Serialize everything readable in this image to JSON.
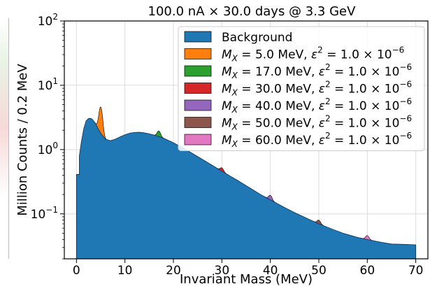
{
  "chart_data": {
    "type": "area",
    "title": "100.0 nA × 30.0 days @ 3.3 GeV",
    "xlabel": "Invariant Mass (MeV)",
    "ylabel": "Million Counts / 0.2 MeV",
    "x_ticks": [
      0,
      10,
      20,
      30,
      40,
      50,
      60,
      70
    ],
    "y_ticks": [
      {
        "value": 0.1,
        "base": "10",
        "exp": "−1"
      },
      {
        "value": 1,
        "base": "10",
        "exp": "0"
      },
      {
        "value": 10,
        "base": "10",
        "exp": "1"
      },
      {
        "value": 100,
        "base": "10",
        "exp": "2"
      }
    ],
    "xlim": [
      -2.5,
      72.5
    ],
    "ylim": [
      0.02,
      100
    ],
    "yscale": "log",
    "grid": true,
    "legend_position": "top-right",
    "background": {
      "name": "Background",
      "color": "#1f77b4",
      "x": [
        0,
        0.6,
        0.6,
        1,
        1.5,
        2,
        2.5,
        3,
        3.3,
        4,
        4.5,
        5,
        6,
        7,
        8,
        9,
        10,
        11,
        12,
        13,
        14,
        15,
        16,
        18,
        20,
        22,
        25,
        28,
        30,
        33,
        35,
        38,
        40,
        43,
        45,
        48,
        50,
        53,
        55,
        58,
        60,
        63,
        65,
        68,
        70
      ],
      "y": [
        0.41,
        0.41,
        0.8,
        1.3,
        2.1,
        2.8,
        3.05,
        3.05,
        2.95,
        2.5,
        2.1,
        1.8,
        1.45,
        1.38,
        1.45,
        1.58,
        1.7,
        1.8,
        1.85,
        1.86,
        1.82,
        1.76,
        1.68,
        1.5,
        1.28,
        1.06,
        0.78,
        0.57,
        0.46,
        0.34,
        0.275,
        0.2,
        0.165,
        0.125,
        0.105,
        0.082,
        0.07,
        0.057,
        0.05,
        0.043,
        0.04,
        0.036,
        0.034,
        0.0335,
        0.033
      ]
    },
    "signals": [
      {
        "label_mass": "5.0",
        "color": "#ff7f0e",
        "mass": 5.0,
        "peak": 4.6
      },
      {
        "label_mass": "17.0",
        "color": "#2ca02c",
        "mass": 17.0,
        "peak": 1.95
      },
      {
        "label_mass": "30.0",
        "color": "#d62728",
        "mass": 30.0,
        "peak": 0.52
      },
      {
        "label_mass": "40.0",
        "color": "#9467bd",
        "mass": 40.0,
        "peak": 0.195
      },
      {
        "label_mass": "50.0",
        "color": "#8c564b",
        "mass": 50.0,
        "peak": 0.08
      },
      {
        "label_mass": "60.0",
        "color": "#e377c2",
        "mass": 60.0,
        "peak": 0.046
      }
    ],
    "signal_label_parts": {
      "mass_symbol": "M",
      "mass_subscript": "X",
      "eq_mass": " = ",
      "unit": " MeV, ",
      "eps_symbol": "ε",
      "eps_exp": "2",
      "eq_eps": " = 1.0 × 10",
      "eps_value_exp": "−6"
    }
  }
}
